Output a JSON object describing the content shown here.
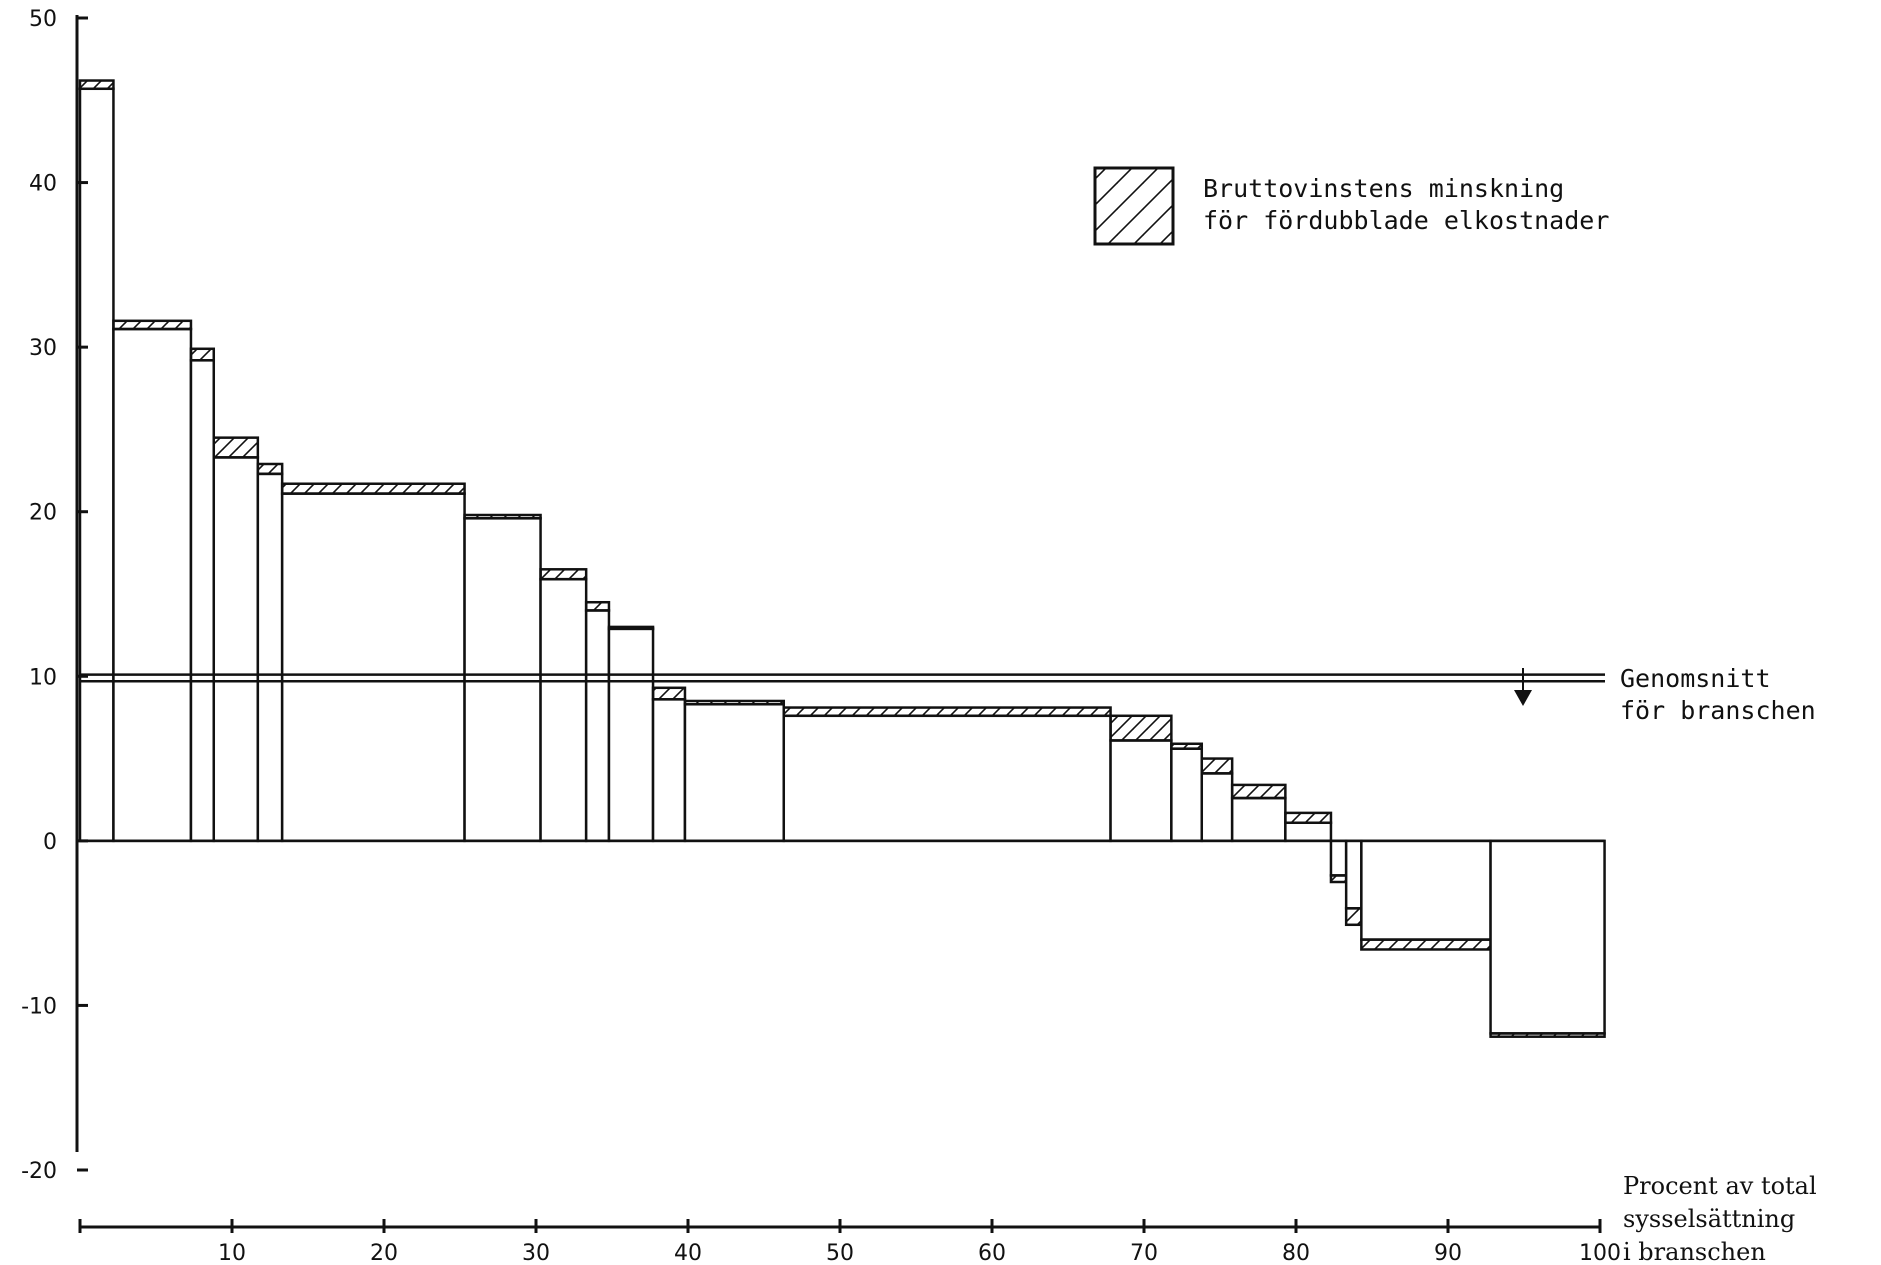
{
  "chart_data": {
    "type": "bar",
    "variant": "variable-width step bars with hatched top segment",
    "x_axis": {
      "range": [
        0,
        100
      ],
      "ticks": [
        10,
        20,
        30,
        40,
        50,
        60,
        70,
        80,
        90,
        100
      ],
      "tick_labels": [
        "10",
        "20",
        "30",
        "40",
        "50",
        "60",
        "70",
        "80",
        "90",
        "100"
      ],
      "label_lines": [
        "Procent av total",
        "sysselsättning",
        "i branschen"
      ]
    },
    "y_axis": {
      "range": [
        -20,
        50
      ],
      "ticks": [
        -20,
        -10,
        0,
        10,
        20,
        30,
        40,
        50
      ],
      "tick_labels": [
        "-20",
        "-10",
        "0",
        "10",
        "20",
        "30",
        "40",
        "50"
      ]
    },
    "legend": {
      "position": "top-right",
      "label_lines": [
        "Bruttovinstens minskning",
        "för fördubblade elkostnader"
      ]
    },
    "reference_line": {
      "value_upper": 10.1,
      "value_lower": 9.7,
      "label_lines": [
        "Genomsnitt",
        "för branschen"
      ]
    },
    "bars": [
      {
        "x_start": 0.0,
        "x_end": 2.2,
        "value": 46.2,
        "lower": 45.7
      },
      {
        "x_start": 2.2,
        "x_end": 7.3,
        "value": 31.6,
        "lower": 31.1
      },
      {
        "x_start": 7.3,
        "x_end": 8.8,
        "value": 29.9,
        "lower": 29.2
      },
      {
        "x_start": 8.8,
        "x_end": 11.7,
        "value": 24.5,
        "lower": 23.3
      },
      {
        "x_start": 11.7,
        "x_end": 13.3,
        "value": 22.9,
        "lower": 22.3
      },
      {
        "x_start": 13.3,
        "x_end": 25.3,
        "value": 21.7,
        "lower": 21.1
      },
      {
        "x_start": 25.3,
        "x_end": 30.3,
        "value": 19.8,
        "lower": 19.6
      },
      {
        "x_start": 30.3,
        "x_end": 33.3,
        "value": 16.5,
        "lower": 15.9
      },
      {
        "x_start": 33.3,
        "x_end": 34.8,
        "value": 14.5,
        "lower": 14.0
      },
      {
        "x_start": 34.8,
        "x_end": 37.7,
        "value": 13.0,
        "lower": 12.9
      },
      {
        "x_start": 37.7,
        "x_end": 39.8,
        "value": 9.3,
        "lower": 8.6
      },
      {
        "x_start": 39.8,
        "x_end": 46.3,
        "value": 8.5,
        "lower": 8.3
      },
      {
        "x_start": 46.3,
        "x_end": 67.8,
        "value": 8.1,
        "lower": 7.6
      },
      {
        "x_start": 67.8,
        "x_end": 71.8,
        "value": 7.6,
        "lower": 6.1
      },
      {
        "x_start": 71.8,
        "x_end": 73.8,
        "value": 5.9,
        "lower": 5.6
      },
      {
        "x_start": 73.8,
        "x_end": 75.8,
        "value": 5.0,
        "lower": 4.1
      },
      {
        "x_start": 75.8,
        "x_end": 79.3,
        "value": 3.4,
        "lower": 2.6
      },
      {
        "x_start": 79.3,
        "x_end": 82.3,
        "value": 1.7,
        "lower": 1.1
      },
      {
        "x_start": 82.3,
        "x_end": 83.3,
        "value": -2.5,
        "lower": -2.1
      },
      {
        "x_start": 83.3,
        "x_end": 84.3,
        "value": -5.1,
        "lower": -4.1
      },
      {
        "x_start": 84.3,
        "x_end": 92.8,
        "value": -6.6,
        "lower": -6.0
      },
      {
        "x_start": 92.8,
        "x_end": 100.3,
        "value": -11.9,
        "lower": -11.7
      }
    ]
  }
}
